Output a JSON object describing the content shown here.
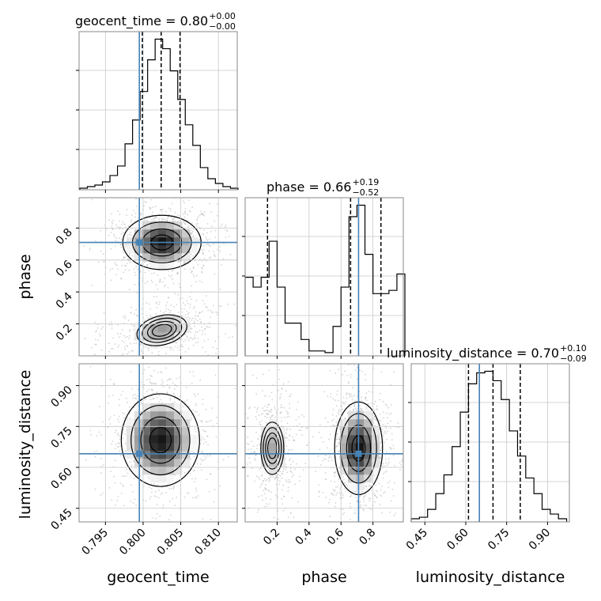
{
  "colors": {
    "truth": "#4682b4",
    "hist": "#000000",
    "grid": "#c8c8c8",
    "density": "#000000",
    "points": "#b0b0b0"
  },
  "chart_data": {
    "type": "corner",
    "parameters": [
      "geocent_time",
      "phase",
      "luminosity_distance"
    ],
    "axis_labels": [
      "geocent_time",
      "phase",
      "luminosity_distance"
    ],
    "titles": [
      {
        "param": "geocent_time",
        "text": "geocent_time = 0.80",
        "sup": "+0.00",
        "sub": "−0.00"
      },
      {
        "param": "phase",
        "text": "phase = 0.66",
        "sup": "+0.19",
        "sub": "−0.52"
      },
      {
        "param": "luminosity_distance",
        "text": "luminosity_distance = 0.70",
        "sup": "+0.10",
        "sub": "−0.09"
      }
    ],
    "ranges": {
      "geocent_time": [
        0.7915,
        0.8125
      ],
      "phase": [
        0.0,
        0.99
      ],
      "luminosity_distance": [
        0.4,
        0.98
      ]
    },
    "ticks": {
      "geocent_time": {
        "values": [
          0.795,
          0.8,
          0.805,
          0.81
        ],
        "labels": [
          "0.795",
          "0.800",
          "0.805",
          "0.810"
        ]
      },
      "phase": {
        "values": [
          0.2,
          0.4,
          0.6,
          0.8
        ],
        "labels": [
          "0.2",
          "0.4",
          "0.6",
          "0.8"
        ]
      },
      "luminosity_distance": {
        "values": [
          0.45,
          0.6,
          0.75,
          0.9
        ],
        "labels": [
          "0.45",
          "0.60",
          "0.75",
          "0.90"
        ]
      }
    },
    "truths": {
      "geocent_time": 0.7995,
      "phase": 0.71,
      "luminosity_distance": 0.65
    },
    "quantiles": {
      "geocent_time": [
        0.7999,
        0.8024,
        0.8049
      ],
      "phase": [
        0.14,
        0.66,
        0.85
      ],
      "luminosity_distance": [
        0.61,
        0.7,
        0.8
      ]
    },
    "histograms": {
      "geocent_time": {
        "edges": [
          0.7916,
          0.7926,
          0.7936,
          0.7946,
          0.7956,
          0.7966,
          0.7976,
          0.7986,
          0.7996,
          0.8006,
          0.8016,
          0.8026,
          0.8036,
          0.8046,
          0.8056,
          0.8066,
          0.8076,
          0.8086,
          0.8096,
          0.8106,
          0.8116,
          0.8126
        ],
        "counts": [
          1,
          2,
          3,
          5,
          9,
          15,
          29,
          44,
          62,
          82,
          95,
          89,
          75,
          57,
          41,
          28,
          14,
          7,
          4,
          2,
          1
        ]
      },
      "phase": {
        "edges": [
          0.0,
          0.05,
          0.1,
          0.15,
          0.2,
          0.25,
          0.3,
          0.35,
          0.4,
          0.45,
          0.5,
          0.55,
          0.6,
          0.65,
          0.7,
          0.75,
          0.8,
          0.85,
          0.9,
          0.95,
          1.0
        ],
        "counts": [
          48,
          42,
          48,
          70,
          42,
          20,
          20,
          10,
          3,
          3,
          2,
          18,
          42,
          85,
          92,
          62,
          38,
          38,
          40,
          50
        ]
      },
      "luminosity_distance": {
        "edges": [
          0.4,
          0.43,
          0.46,
          0.49,
          0.52,
          0.55,
          0.58,
          0.61,
          0.64,
          0.67,
          0.7,
          0.73,
          0.76,
          0.79,
          0.82,
          0.85,
          0.88,
          0.91,
          0.94,
          0.97
        ],
        "counts": [
          2,
          3,
          8,
          18,
          30,
          48,
          70,
          88,
          95,
          96,
          90,
          78,
          58,
          42,
          28,
          18,
          8,
          5,
          2
        ]
      }
    },
    "joint_2d": [
      {
        "x": "geocent_time",
        "y": "phase",
        "blobs": [
          {
            "cx": 0.8025,
            "cy": 0.71,
            "sx": 0.0026,
            "sy": 0.085,
            "w": 1.0
          },
          {
            "cx": 0.8025,
            "cy": 0.16,
            "sx": 0.0026,
            "sy": 0.07,
            "w": 0.55,
            "skew": -0.35
          }
        ]
      },
      {
        "x": "geocent_time",
        "y": "luminosity_distance",
        "blobs": [
          {
            "cx": 0.8023,
            "cy": 0.7,
            "sx": 0.0026,
            "sy": 0.085,
            "w": 1.0
          }
        ]
      },
      {
        "x": "phase",
        "y": "luminosity_distance",
        "blobs": [
          {
            "cx": 0.71,
            "cy": 0.67,
            "sx": 0.075,
            "sy": 0.085,
            "w": 1.0
          },
          {
            "cx": 0.17,
            "cy": 0.67,
            "sx": 0.06,
            "sy": 0.08,
            "w": 0.5
          }
        ]
      }
    ]
  }
}
